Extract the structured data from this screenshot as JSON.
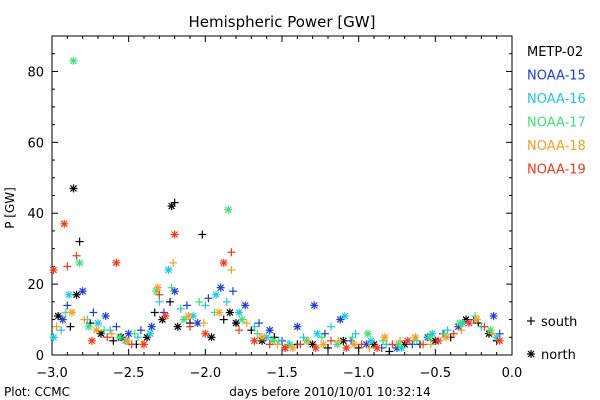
{
  "colors": {
    "METP-02": "#000000",
    "NOAA-15": "#1f3fd6",
    "NOAA-16": "#1ec8e0",
    "NOAA-17": "#3fe07a",
    "NOAA-18": "#f5a020",
    "NOAA-19": "#f23a1a",
    "axis": "#000000"
  },
  "footer": {
    "credit": "Plot: CCMC"
  },
  "chart_data": {
    "type": "scatter",
    "title": "Hemispheric Power [GW]",
    "xlabel": "days before 2010/10/01 10:32:14",
    "ylabel": "P [GW]",
    "xlim": [
      -3.0,
      0.0
    ],
    "ylim": [
      0,
      90
    ],
    "xticks": [
      -3.0,
      -2.5,
      -2.0,
      -1.5,
      -1.0,
      -0.5,
      0.0
    ],
    "xtick_labels": [
      "−3.0",
      "−2.5",
      "−2.0",
      "−1.5",
      "−1.0",
      "−0.5",
      "0.0"
    ],
    "yticks": [
      0,
      20,
      40,
      60,
      80
    ],
    "ytick_labels": [
      "0",
      "20",
      "40",
      "60",
      "80"
    ],
    "grid": false,
    "legend_position": "right",
    "marker_legend": [
      {
        "symbol": "+",
        "label": "south"
      },
      {
        "symbol": "*",
        "label": "north"
      }
    ],
    "series": [
      {
        "name": "METP-02",
        "color": "#000000",
        "points": [
          [
            -2.86,
            47,
            "*"
          ],
          [
            -2.82,
            32,
            "+"
          ],
          [
            -2.84,
            17,
            "*"
          ],
          [
            -2.88,
            8,
            "+"
          ],
          [
            -2.96,
            11,
            "*"
          ],
          [
            -2.75,
            9,
            "+"
          ],
          [
            -2.68,
            6,
            "*"
          ],
          [
            -2.6,
            4,
            "+"
          ],
          [
            -2.55,
            5,
            "*"
          ],
          [
            -2.45,
            3,
            "+"
          ],
          [
            -2.38,
            5,
            "*"
          ],
          [
            -2.33,
            12,
            "+"
          ],
          [
            -2.28,
            10,
            "*"
          ],
          [
            -2.22,
            42,
            "*"
          ],
          [
            -2.2,
            43,
            "+"
          ],
          [
            -2.23,
            15,
            "+"
          ],
          [
            -2.18,
            8,
            "*"
          ],
          [
            -2.1,
            9,
            "+"
          ],
          [
            -2.02,
            34,
            "+"
          ],
          [
            -1.96,
            5,
            "*"
          ],
          [
            -1.88,
            10,
            "+"
          ],
          [
            -1.84,
            12,
            "*"
          ],
          [
            -1.8,
            9,
            "*"
          ],
          [
            -1.7,
            7,
            "+"
          ],
          [
            -1.63,
            4,
            "*"
          ],
          [
            -1.55,
            5,
            "+"
          ],
          [
            -1.48,
            2,
            "*"
          ],
          [
            -1.4,
            3,
            "+"
          ],
          [
            -1.3,
            3,
            "*"
          ],
          [
            -1.2,
            2,
            "+"
          ],
          [
            -1.1,
            4,
            "*"
          ],
          [
            -1.0,
            2,
            "+"
          ],
          [
            -0.9,
            3,
            "*"
          ],
          [
            -0.8,
            1,
            "+"
          ],
          [
            -0.7,
            3,
            "*"
          ],
          [
            -0.6,
            3,
            "+"
          ],
          [
            -0.5,
            4,
            "*"
          ],
          [
            -0.4,
            5,
            "+"
          ],
          [
            -0.3,
            10,
            "*"
          ],
          [
            -0.22,
            9,
            "+"
          ],
          [
            -0.15,
            6,
            "*"
          ],
          [
            -0.1,
            4,
            "+"
          ]
        ]
      },
      {
        "name": "NOAA-15",
        "color": "#1f3fd6",
        "points": [
          [
            -2.93,
            10,
            "*"
          ],
          [
            -2.9,
            14,
            "+"
          ],
          [
            -2.8,
            18,
            "*"
          ],
          [
            -2.73,
            12,
            "+"
          ],
          [
            -2.65,
            11,
            "*"
          ],
          [
            -2.58,
            8,
            "+"
          ],
          [
            -2.5,
            6,
            "*"
          ],
          [
            -2.42,
            7,
            "+"
          ],
          [
            -2.35,
            8,
            "*"
          ],
          [
            -2.27,
            12,
            "+"
          ],
          [
            -2.2,
            18,
            "*"
          ],
          [
            -2.12,
            14,
            "+"
          ],
          [
            -2.05,
            9,
            "*"
          ],
          [
            -1.98,
            16,
            "+"
          ],
          [
            -1.9,
            19,
            "*"
          ],
          [
            -1.82,
            18,
            "+"
          ],
          [
            -1.74,
            14,
            "*"
          ],
          [
            -1.65,
            9,
            "+"
          ],
          [
            -1.58,
            7,
            "*"
          ],
          [
            -1.5,
            4,
            "+"
          ],
          [
            -1.4,
            8,
            "*"
          ],
          [
            -1.29,
            14,
            "*"
          ],
          [
            -1.22,
            6,
            "+"
          ],
          [
            -1.12,
            10,
            "*"
          ],
          [
            -1.05,
            4,
            "+"
          ],
          [
            -0.95,
            3,
            "*"
          ],
          [
            -0.85,
            2,
            "+"
          ],
          [
            -0.75,
            2,
            "*"
          ],
          [
            -0.65,
            3,
            "+"
          ],
          [
            -0.55,
            5,
            "*"
          ],
          [
            -0.45,
            6,
            "+"
          ],
          [
            -0.35,
            8,
            "*"
          ],
          [
            -0.25,
            10,
            "+"
          ],
          [
            -0.12,
            11,
            "*"
          ],
          [
            -0.08,
            6,
            "+"
          ]
        ]
      },
      {
        "name": "NOAA-16",
        "color": "#1ec8e0",
        "points": [
          [
            -2.99,
            5,
            "*"
          ],
          [
            -2.94,
            7,
            "+"
          ],
          [
            -2.89,
            17,
            "*"
          ],
          [
            -2.77,
            10,
            "+"
          ],
          [
            -2.7,
            9,
            "*"
          ],
          [
            -2.62,
            7,
            "+"
          ],
          [
            -2.52,
            4,
            "*"
          ],
          [
            -2.44,
            5,
            "+"
          ],
          [
            -2.36,
            6,
            "*"
          ],
          [
            -2.3,
            15,
            "+"
          ],
          [
            -2.24,
            24,
            "*"
          ],
          [
            -2.16,
            13,
            "+"
          ],
          [
            -2.08,
            11,
            "*"
          ],
          [
            -2.0,
            14,
            "+"
          ],
          [
            -1.93,
            17,
            "*"
          ],
          [
            -1.86,
            15,
            "+"
          ],
          [
            -1.78,
            12,
            "*"
          ],
          [
            -1.68,
            8,
            "+"
          ],
          [
            -1.6,
            5,
            "*"
          ],
          [
            -1.52,
            4,
            "+"
          ],
          [
            -1.45,
            3,
            "*"
          ],
          [
            -1.36,
            5,
            "+"
          ],
          [
            -1.27,
            6,
            "*"
          ],
          [
            -1.18,
            8,
            "+"
          ],
          [
            -1.09,
            11,
            "*"
          ],
          [
            -1.02,
            6,
            "+"
          ],
          [
            -0.92,
            4,
            "*"
          ],
          [
            -0.82,
            3,
            "+"
          ],
          [
            -0.72,
            2,
            "*"
          ],
          [
            -0.62,
            4,
            "+"
          ],
          [
            -0.52,
            6,
            "*"
          ],
          [
            -0.42,
            7,
            "+"
          ],
          [
            -0.32,
            9,
            "*"
          ],
          [
            -0.2,
            8,
            "+"
          ],
          [
            -0.1,
            5,
            "*"
          ]
        ]
      },
      {
        "name": "NOAA-17",
        "color": "#3fe07a",
        "points": [
          [
            -2.86,
            83,
            "*"
          ],
          [
            -2.82,
            26,
            "*"
          ],
          [
            -2.91,
            12,
            "+"
          ],
          [
            -2.76,
            8,
            "*"
          ],
          [
            -2.66,
            7,
            "+"
          ],
          [
            -2.56,
            5,
            "*"
          ],
          [
            -2.46,
            6,
            "+"
          ],
          [
            -2.32,
            18,
            "*"
          ],
          [
            -2.22,
            19,
            "+"
          ],
          [
            -2.14,
            10,
            "*"
          ],
          [
            -2.04,
            15,
            "+"
          ],
          [
            -1.85,
            41,
            "*"
          ],
          [
            -1.94,
            12,
            "+"
          ],
          [
            -1.76,
            10,
            "*"
          ],
          [
            -1.66,
            6,
            "+"
          ],
          [
            -1.56,
            4,
            "*"
          ],
          [
            -1.46,
            3,
            "+"
          ],
          [
            -1.34,
            4,
            "*"
          ],
          [
            -1.24,
            5,
            "+"
          ],
          [
            -1.14,
            3,
            "*"
          ],
          [
            -1.04,
            5,
            "+"
          ],
          [
            -0.94,
            6,
            "*"
          ],
          [
            -0.84,
            4,
            "+"
          ],
          [
            -0.74,
            3,
            "*"
          ],
          [
            -0.64,
            4,
            "+"
          ],
          [
            -0.54,
            5,
            "*"
          ],
          [
            -0.44,
            6,
            "+"
          ],
          [
            -0.34,
            9,
            "*"
          ],
          [
            -0.24,
            11,
            "+"
          ],
          [
            -0.14,
            7,
            "*"
          ]
        ]
      },
      {
        "name": "NOAA-18",
        "color": "#f5a020",
        "points": [
          [
            -2.97,
            8,
            "+"
          ],
          [
            -2.87,
            12,
            "*"
          ],
          [
            -2.79,
            10,
            "+"
          ],
          [
            -2.71,
            7,
            "*"
          ],
          [
            -2.61,
            6,
            "+"
          ],
          [
            -2.51,
            4,
            "*"
          ],
          [
            -2.41,
            3,
            "+"
          ],
          [
            -2.31,
            19,
            "*"
          ],
          [
            -2.21,
            26,
            "+"
          ],
          [
            -2.11,
            11,
            "*"
          ],
          [
            -2.01,
            9,
            "+"
          ],
          [
            -1.83,
            24,
            "+"
          ],
          [
            -1.91,
            12,
            "*"
          ],
          [
            -1.73,
            9,
            "+"
          ],
          [
            -1.63,
            5,
            "*"
          ],
          [
            -1.53,
            3,
            "+"
          ],
          [
            -1.43,
            2,
            "*"
          ],
          [
            -1.33,
            4,
            "+"
          ],
          [
            -1.23,
            3,
            "*"
          ],
          [
            -1.13,
            4,
            "+"
          ],
          [
            -1.03,
            3,
            "*"
          ],
          [
            -0.93,
            2,
            "+"
          ],
          [
            -0.83,
            5,
            "*"
          ],
          [
            -0.73,
            4,
            "+"
          ],
          [
            -0.63,
            5,
            "*"
          ],
          [
            -0.53,
            3,
            "+"
          ],
          [
            -0.43,
            5,
            "*"
          ],
          [
            -0.33,
            7,
            "+"
          ],
          [
            -0.23,
            10,
            "*"
          ],
          [
            -0.13,
            6,
            "+"
          ]
        ]
      },
      {
        "name": "NOAA-19",
        "color": "#f23a1a",
        "points": [
          [
            -2.99,
            24,
            "*"
          ],
          [
            -2.92,
            37,
            "*"
          ],
          [
            -2.9,
            25,
            "+"
          ],
          [
            -2.84,
            28,
            "+"
          ],
          [
            -2.74,
            4,
            "*"
          ],
          [
            -2.64,
            5,
            "+"
          ],
          [
            -2.58,
            26,
            "*"
          ],
          [
            -2.48,
            3,
            "+"
          ],
          [
            -2.4,
            3,
            "*"
          ],
          [
            -2.3,
            17,
            "+"
          ],
          [
            -2.2,
            34,
            "*"
          ],
          [
            -2.26,
            11,
            "*"
          ],
          [
            -2.1,
            8,
            "+"
          ],
          [
            -2.0,
            6,
            "*"
          ],
          [
            -1.88,
            26,
            "*"
          ],
          [
            -1.83,
            29,
            "+"
          ],
          [
            -1.78,
            7,
            "+"
          ],
          [
            -1.68,
            4,
            "*"
          ],
          [
            -1.58,
            3,
            "+"
          ],
          [
            -1.48,
            2,
            "*"
          ],
          [
            -1.38,
            3,
            "+"
          ],
          [
            -1.28,
            2,
            "*"
          ],
          [
            -1.18,
            4,
            "+"
          ],
          [
            -1.08,
            2,
            "*"
          ],
          [
            -0.98,
            3,
            "+"
          ],
          [
            -0.88,
            2,
            "*"
          ],
          [
            -0.78,
            3,
            "+"
          ],
          [
            -0.68,
            4,
            "*"
          ],
          [
            -0.58,
            3,
            "+"
          ],
          [
            -0.48,
            4,
            "*"
          ],
          [
            -0.38,
            6,
            "+"
          ],
          [
            -0.28,
            9,
            "*"
          ],
          [
            -0.18,
            8,
            "+"
          ],
          [
            -0.08,
            4,
            "*"
          ]
        ]
      }
    ]
  }
}
